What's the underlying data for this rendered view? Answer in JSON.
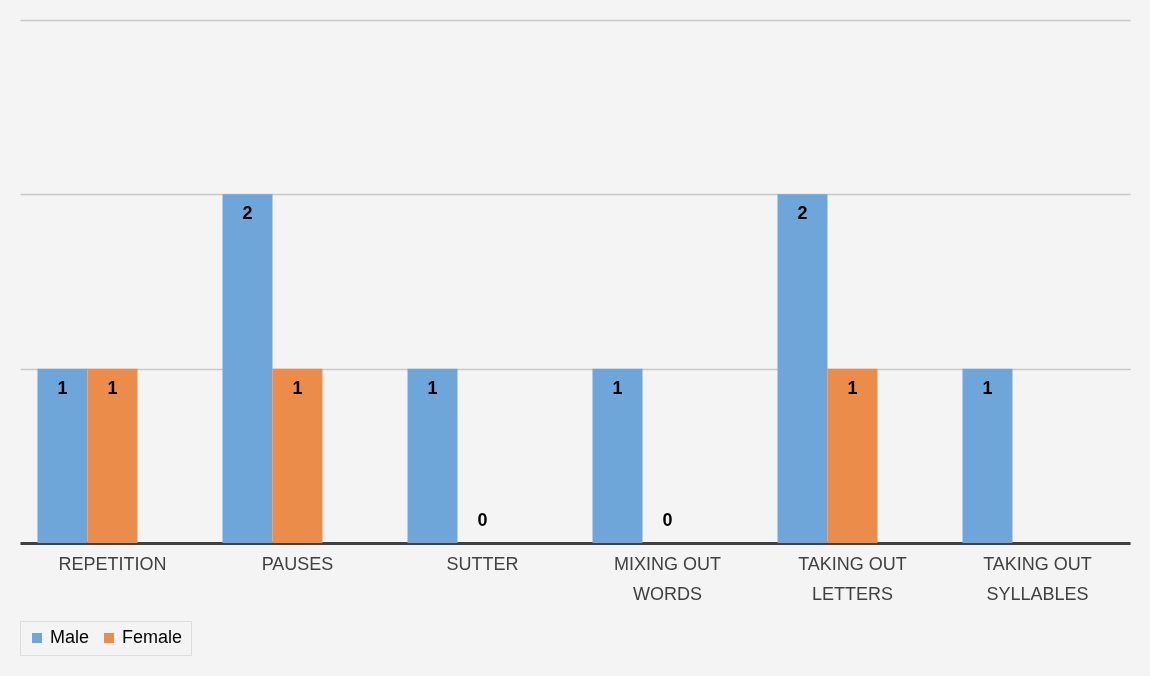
{
  "chart_data": {
    "type": "bar",
    "categories": [
      "REPETITION",
      "PAUSES",
      "SUTTER",
      "MIXING OUT WORDS",
      "TAKING OUT LETTERS",
      "TAKING OUT SYLLABLES"
    ],
    "series": [
      {
        "name": "Male",
        "color": "#6fa6d9",
        "values": [
          1,
          2,
          1,
          1,
          2,
          1
        ]
      },
      {
        "name": "Female",
        "color": "#ec8c4b",
        "values": [
          1,
          1,
          0,
          0,
          1,
          null
        ]
      }
    ],
    "ylim": [
      0,
      3
    ],
    "yticks": [
      {
        "value": 0,
        "label": null
      },
      {
        "value": 1,
        "label": null
      },
      {
        "value": 2,
        "label": null
      },
      {
        "value": 3,
        "label": null
      }
    ],
    "tick_labels": "x",
    "grid": "y",
    "legend": "bottom",
    "data_labels": true
  }
}
